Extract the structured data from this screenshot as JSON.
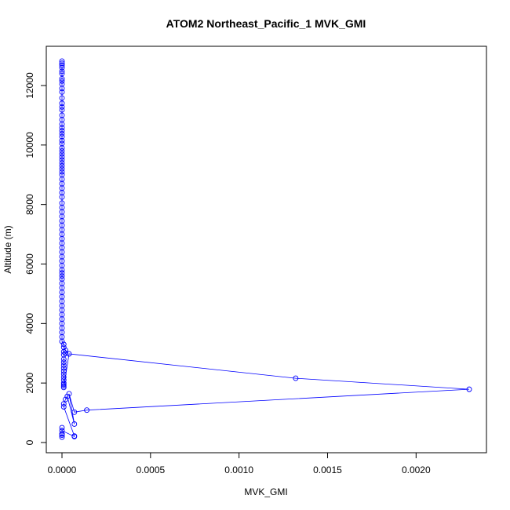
{
  "chart_data": {
    "type": "scatter",
    "title": "ATOM2 Northeast_Pacific_1 MVK_GMI",
    "xlabel": "MVK_GMI",
    "ylabel": "Altitude (m)",
    "xlim": [
      0,
      0.0023
    ],
    "ylim": [
      0,
      12800
    ],
    "xticks": [
      0,
      0.0005,
      0.001,
      0.0015,
      0.002
    ],
    "xtick_labels": [
      "0.0000",
      "0.0005",
      "0.0010",
      "0.0015",
      "0.0020"
    ],
    "yticks": [
      0,
      2000,
      4000,
      6000,
      8000,
      10000,
      12000
    ],
    "ytick_labels": [
      "0",
      "2000",
      "4000",
      "6000",
      "8000",
      "10000",
      "12000"
    ],
    "grid": false,
    "legend": "none",
    "color": "#0000ff",
    "series": [
      {
        "style": "line-with-open-circles",
        "x": [
          0.0,
          0.0,
          0.0,
          0.0,
          0.0,
          0.0,
          0.0,
          0.0,
          0.0,
          0.0,
          0.0,
          0.0,
          0.0,
          0.0,
          0.0,
          0.0,
          0.0,
          0.0,
          0.0,
          0.0,
          0.0,
          0.0,
          0.0,
          0.0,
          0.0,
          0.0,
          0.0,
          0.0,
          0.0,
          0.0,
          0.0,
          0.0,
          0.0,
          0.0,
          0.0,
          0.0,
          0.0,
          0.0,
          0.0,
          0.0,
          0.0,
          0.0,
          0.0,
          0.0,
          0.0,
          0.0,
          0.0,
          0.0,
          0.0,
          0.0,
          0.0,
          0.0,
          0.0,
          0.0,
          0.0,
          0.0,
          0.0,
          0.0,
          0.0,
          0.0,
          0.0,
          0.0,
          0.0,
          0.0,
          0.0,
          0.0,
          0.0,
          0.0,
          0.0,
          0.0,
          0.0,
          0.0,
          1e-05,
          1e-05,
          2e-05,
          1e-05,
          2e-05,
          1e-05,
          1e-05,
          1e-05,
          1e-05,
          1e-05,
          1e-05,
          1e-05,
          1e-05,
          1e-05,
          1e-05,
          1e-05,
          1e-05,
          1e-05,
          4e-05,
          0.00132,
          0.0023,
          0.00014,
          7e-05,
          4e-05,
          7e-05,
          3e-05,
          2e-05,
          1e-05,
          1e-05,
          7e-05,
          7e-05,
          0.0,
          0.0,
          0.0,
          0.0,
          0.0
        ],
        "y": [
          12820,
          12750,
          12680,
          12600,
          12480,
          12400,
          12230,
          12150,
          12050,
          11900,
          11780,
          11580,
          11400,
          11280,
          11180,
          11000,
          10850,
          10700,
          10580,
          10480,
          10380,
          10280,
          10150,
          10050,
          9900,
          9800,
          9700,
          9600,
          9500,
          9400,
          9300,
          9200,
          9100,
          9000,
          8850,
          8700,
          8550,
          8400,
          8250,
          8050,
          7900,
          7750,
          7600,
          7450,
          7300,
          7150,
          7000,
          6850,
          6700,
          6550,
          6400,
          6250,
          6100,
          5950,
          5800,
          5700,
          5600,
          5500,
          5350,
          5200,
          5050,
          4900,
          4750,
          4600,
          4450,
          4300,
          4150,
          4000,
          3850,
          3700,
          3550,
          3400,
          3300,
          3200,
          3100,
          3050,
          3000,
          2950,
          2800,
          2700,
          2600,
          2500,
          2400,
          2300,
          2200,
          2100,
          2000,
          1950,
          1900,
          1850,
          2980,
          2160,
          1790,
          1090,
          1020,
          1640,
          620,
          1550,
          1450,
          1300,
          1200,
          220,
          200,
          400,
          500,
          300,
          250,
          180
        ]
      }
    ]
  }
}
